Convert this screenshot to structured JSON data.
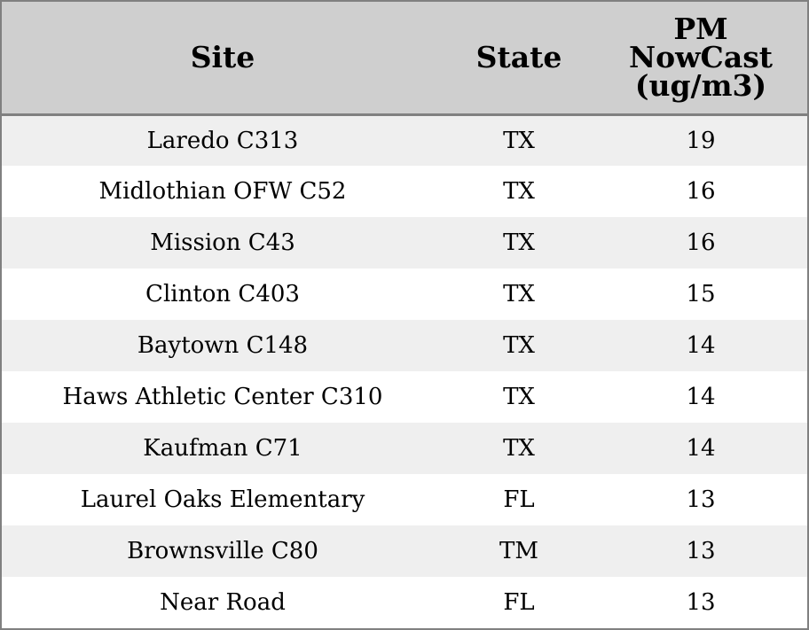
{
  "table": {
    "headers": {
      "site": "Site",
      "state": "State",
      "pm_lines": [
        "PM",
        "NowCast",
        "(ug/m3)"
      ]
    },
    "rows": [
      {
        "site": "Laredo C313",
        "state": "TX",
        "pm": "19"
      },
      {
        "site": "Midlothian OFW C52",
        "state": "TX",
        "pm": "16"
      },
      {
        "site": "Mission C43",
        "state": "TX",
        "pm": "16"
      },
      {
        "site": "Clinton C403",
        "state": "TX",
        "pm": "15"
      },
      {
        "site": "Baytown C148",
        "state": "TX",
        "pm": "14"
      },
      {
        "site": "Haws Athletic Center C310",
        "state": "TX",
        "pm": "14"
      },
      {
        "site": "Kaufman C71",
        "state": "TX",
        "pm": "14"
      },
      {
        "site": "Laurel Oaks Elementary",
        "state": "FL",
        "pm": "13"
      },
      {
        "site": "Brownsville C80",
        "state": "TM",
        "pm": "13"
      },
      {
        "site": "Near Road",
        "state": "FL",
        "pm": "13"
      }
    ]
  },
  "colors": {
    "header_bg": "#cfcfcf",
    "row_alt_bg": "#efefef",
    "row_bg": "#ffffff",
    "border": "#808080"
  }
}
